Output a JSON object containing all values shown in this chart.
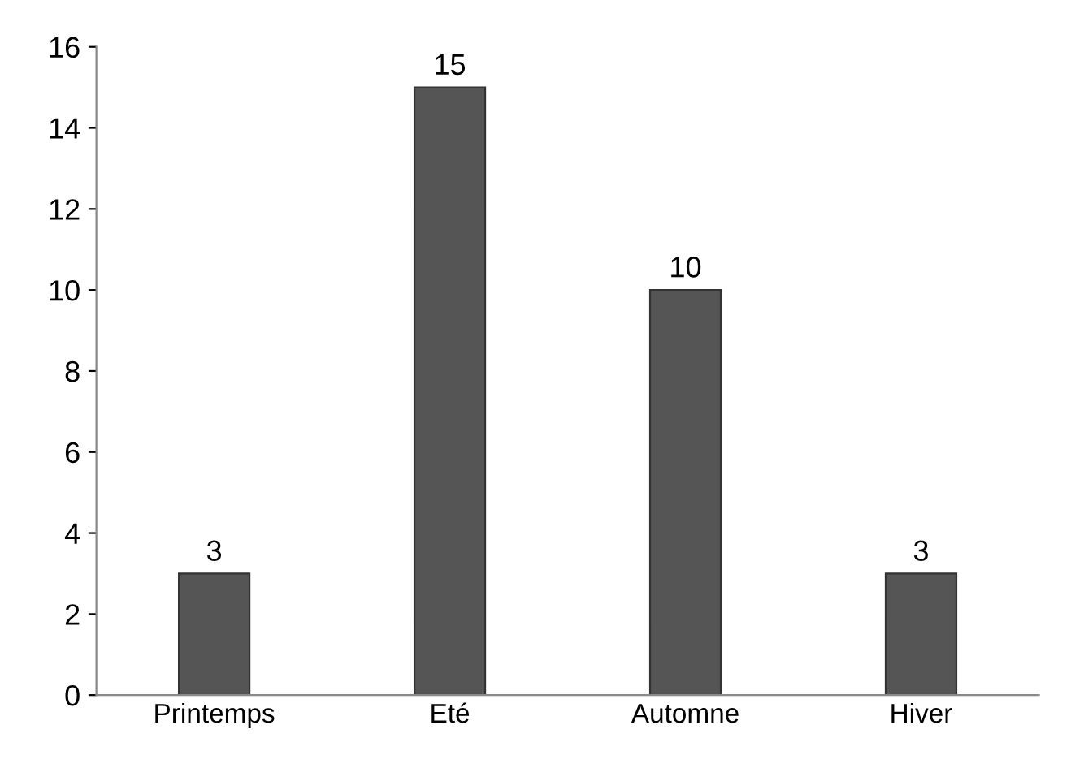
{
  "chart_data": {
    "type": "bar",
    "categories": [
      "Printemps",
      "Eté",
      "Automne",
      "Hiver"
    ],
    "values": [
      3,
      15,
      10,
      3
    ],
    "color": "#555555",
    "ylim": [
      0,
      16
    ],
    "yticks": [
      0,
      2,
      4,
      6,
      8,
      10,
      12,
      14,
      16
    ],
    "data_labels": true,
    "grid": false
  }
}
